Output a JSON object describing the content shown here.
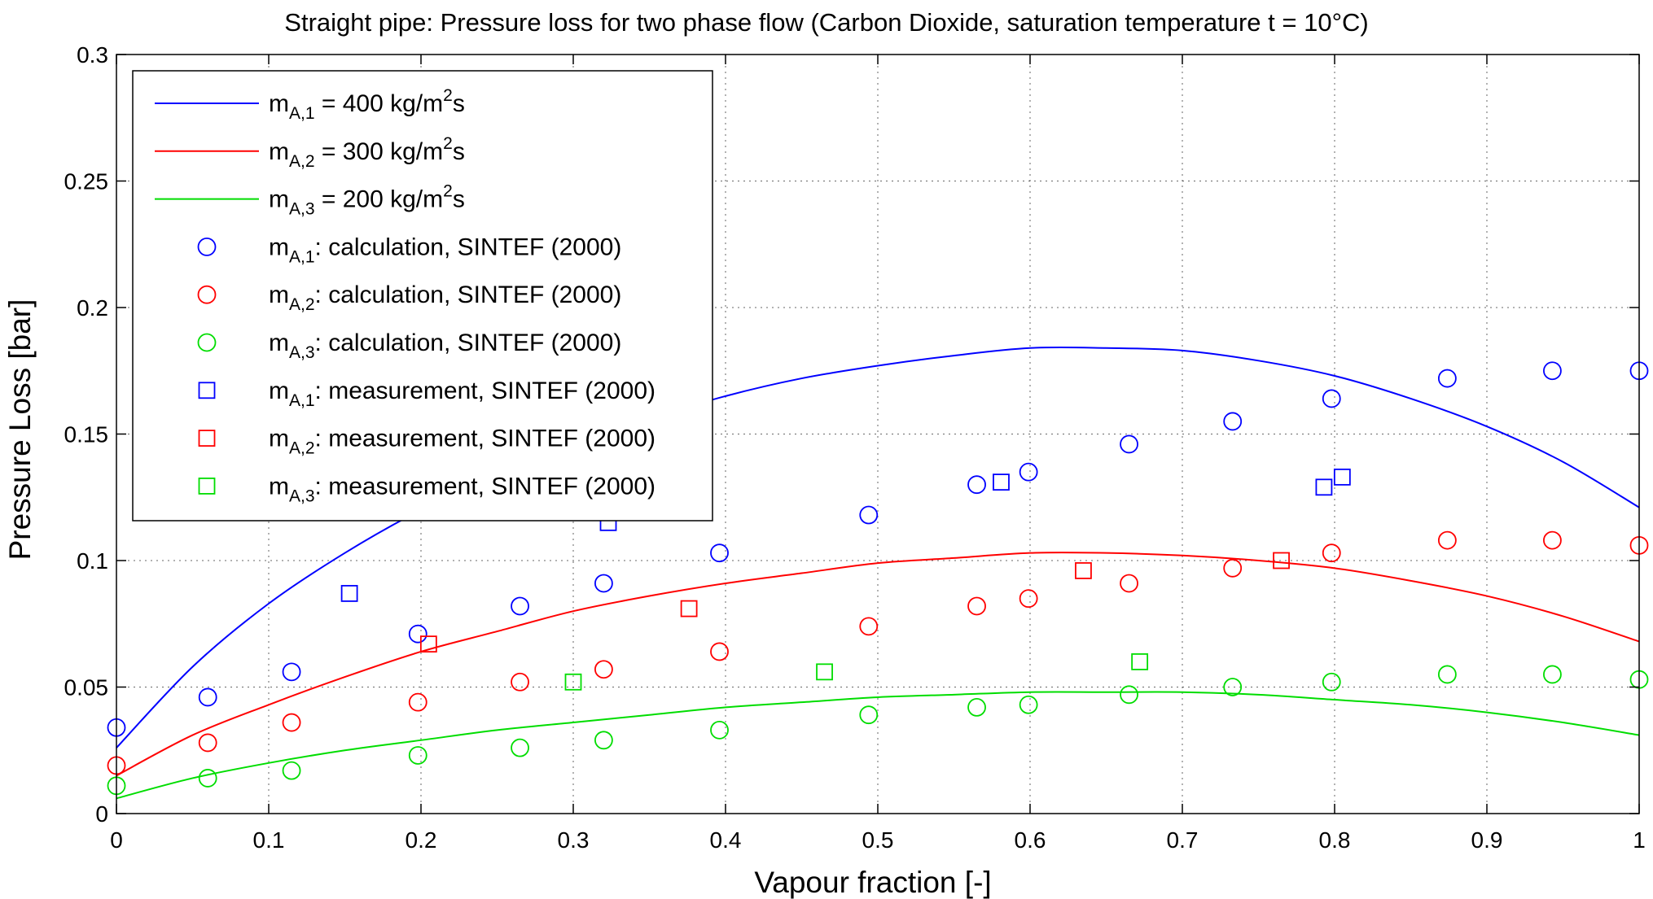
{
  "chart_data": {
    "type": "line",
    "title": "Straight pipe: Pressure loss for two phase flow (Carbon Dioxide, saturation temperature t = 10°C)",
    "xlabel": "Vapour fraction [-]",
    "ylabel": "Pressure Loss [bar]",
    "xlim": [
      0,
      1
    ],
    "ylim": [
      0,
      0.3
    ],
    "xticks": [
      0,
      0.1,
      0.2,
      0.3,
      0.4,
      0.5,
      0.6,
      0.7,
      0.8,
      0.9,
      1
    ],
    "yticks": [
      0,
      0.05,
      0.1,
      0.15,
      0.2,
      0.25,
      0.3
    ],
    "xtick_labels": [
      "0",
      "0.1",
      "0.2",
      "0.3",
      "0.4",
      "0.5",
      "0.6",
      "0.7",
      "0.8",
      "0.9",
      "1"
    ],
    "ytick_labels": [
      "0",
      "0.05",
      "0.1",
      "0.15",
      "0.2",
      "0.25",
      "0.3"
    ],
    "grid": true,
    "legend_position": "top-left",
    "series": [
      {
        "kind": "line",
        "color": "#0000ff",
        "label_main": "m",
        "label_sub": "A,1",
        "label_rest": " = 400 kg/m",
        "label_sup": "2",
        "label_end": "s",
        "x": [
          0,
          0.05,
          0.1,
          0.15,
          0.2,
          0.25,
          0.3,
          0.35,
          0.4,
          0.45,
          0.5,
          0.55,
          0.6,
          0.65,
          0.7,
          0.75,
          0.8,
          0.85,
          0.9,
          0.95,
          1
        ],
        "y": [
          0.026,
          0.058,
          0.083,
          0.103,
          0.12,
          0.134,
          0.146,
          0.156,
          0.165,
          0.172,
          0.177,
          0.181,
          0.184,
          0.184,
          0.183,
          0.179,
          0.173,
          0.164,
          0.153,
          0.139,
          0.121
        ]
      },
      {
        "kind": "line",
        "color": "#ff0000",
        "label_main": "m",
        "label_sub": "A,2",
        "label_rest": " = 300 kg/m",
        "label_sup": "2",
        "label_end": "s",
        "x": [
          0,
          0.05,
          0.1,
          0.15,
          0.2,
          0.25,
          0.3,
          0.35,
          0.4,
          0.45,
          0.5,
          0.55,
          0.6,
          0.65,
          0.7,
          0.75,
          0.8,
          0.85,
          0.9,
          0.95,
          1
        ],
        "y": [
          0.015,
          0.031,
          0.043,
          0.054,
          0.064,
          0.072,
          0.08,
          0.086,
          0.091,
          0.095,
          0.099,
          0.101,
          0.103,
          0.103,
          0.102,
          0.1,
          0.097,
          0.092,
          0.086,
          0.078,
          0.068
        ]
      },
      {
        "kind": "line",
        "color": "#00dd00",
        "label_main": "m",
        "label_sub": "A,3",
        "label_rest": " = 200 kg/m",
        "label_sup": "2",
        "label_end": "s",
        "x": [
          0,
          0.05,
          0.1,
          0.15,
          0.2,
          0.25,
          0.3,
          0.35,
          0.4,
          0.45,
          0.5,
          0.55,
          0.6,
          0.65,
          0.7,
          0.75,
          0.8,
          0.85,
          0.9,
          0.95,
          1
        ],
        "y": [
          0.006,
          0.014,
          0.02,
          0.025,
          0.029,
          0.033,
          0.036,
          0.039,
          0.042,
          0.044,
          0.046,
          0.047,
          0.048,
          0.048,
          0.048,
          0.047,
          0.045,
          0.043,
          0.04,
          0.036,
          0.031
        ]
      },
      {
        "kind": "circle",
        "color": "#0000ff",
        "label_main": "m",
        "label_sub": "A,1",
        "label_rest": ": calculation, SINTEF (2000)",
        "x": [
          0,
          0.06,
          0.115,
          0.198,
          0.265,
          0.32,
          0.396,
          0.494,
          0.565,
          0.599,
          0.665,
          0.733,
          0.798,
          0.874,
          0.943,
          1
        ],
        "y": [
          0.034,
          0.046,
          0.056,
          0.071,
          0.082,
          0.091,
          0.103,
          0.118,
          0.13,
          0.135,
          0.146,
          0.155,
          0.164,
          0.172,
          0.175,
          0.175
        ]
      },
      {
        "kind": "circle",
        "color": "#ff0000",
        "label_main": "m",
        "label_sub": "A,2",
        "label_rest": ": calculation, SINTEF (2000)",
        "x": [
          0,
          0.06,
          0.115,
          0.198,
          0.265,
          0.32,
          0.396,
          0.494,
          0.565,
          0.599,
          0.665,
          0.733,
          0.798,
          0.874,
          0.943,
          1
        ],
        "y": [
          0.019,
          0.028,
          0.036,
          0.044,
          0.052,
          0.057,
          0.064,
          0.074,
          0.082,
          0.085,
          0.091,
          0.097,
          0.103,
          0.108,
          0.108,
          0.106
        ]
      },
      {
        "kind": "circle",
        "color": "#00dd00",
        "label_main": "m",
        "label_sub": "A,3",
        "label_rest": ": calculation, SINTEF (2000)",
        "x": [
          0,
          0.06,
          0.115,
          0.198,
          0.265,
          0.32,
          0.396,
          0.494,
          0.565,
          0.599,
          0.665,
          0.733,
          0.798,
          0.874,
          0.943,
          1
        ],
        "y": [
          0.011,
          0.014,
          0.017,
          0.023,
          0.026,
          0.029,
          0.033,
          0.039,
          0.042,
          0.043,
          0.047,
          0.05,
          0.052,
          0.055,
          0.055,
          0.053
        ]
      },
      {
        "kind": "square",
        "color": "#0000ff",
        "label_main": "m",
        "label_sub": "A,1",
        "label_rest": ": measurement, SINTEF (2000)",
        "x": [
          0.153,
          0.323,
          0.581,
          0.793,
          0.805
        ],
        "y": [
          0.087,
          0.115,
          0.131,
          0.129,
          0.133
        ]
      },
      {
        "kind": "square",
        "color": "#ff0000",
        "label_main": "m",
        "label_sub": "A,2",
        "label_rest": ": measurement, SINTEF (2000)",
        "x": [
          0.205,
          0.376,
          0.635,
          0.765
        ],
        "y": [
          0.067,
          0.081,
          0.096,
          0.1
        ]
      },
      {
        "kind": "square",
        "color": "#00dd00",
        "label_main": "m",
        "label_sub": "A,3",
        "label_rest": ": measurement, SINTEF (2000)",
        "x": [
          0.3,
          0.465,
          0.672
        ],
        "y": [
          0.052,
          0.056,
          0.06
        ]
      }
    ]
  }
}
